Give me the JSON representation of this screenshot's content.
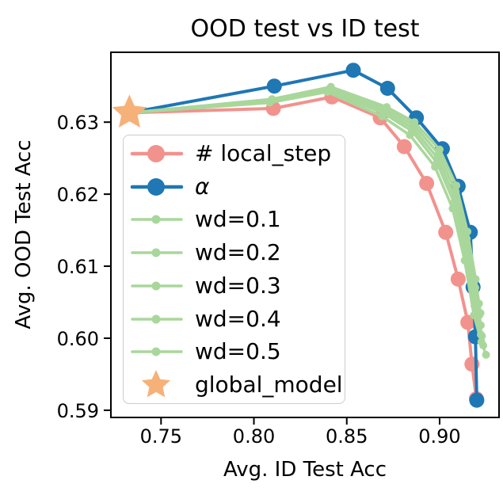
{
  "figure": {
    "title": "OOD test vs ID test",
    "xlabel": "Avg. ID Test Acc",
    "ylabel": "Avg. OOD Test Acc"
  },
  "colors": {
    "blue": "#1f77b4",
    "pink": "#f2928d",
    "green": "#a9d79b",
    "orange": "#f6b179",
    "axis": "#000000",
    "legend_border": "#cccccc"
  },
  "chart_data": {
    "type": "line",
    "title": "OOD test vs ID test",
    "xlabel": "Avg. ID Test Acc",
    "ylabel": "Avg. OOD Test Acc",
    "xlim": [
      0.723,
      0.932
    ],
    "ylim": [
      0.589,
      0.6397
    ],
    "grid": false,
    "legend_position": "center-left-inside",
    "xticks": [
      {
        "value": 0.75,
        "label": "0.75"
      },
      {
        "value": 0.8,
        "label": "0.80"
      },
      {
        "value": 0.85,
        "label": "0.85"
      },
      {
        "value": 0.9,
        "label": "0.90"
      }
    ],
    "yticks": [
      {
        "value": 0.63,
        "label": "0.63"
      },
      {
        "value": 0.62,
        "label": "0.62"
      },
      {
        "value": 0.61,
        "label": "0.61"
      },
      {
        "value": 0.6,
        "label": "0.60"
      },
      {
        "value": 0.59,
        "label": "0.59"
      }
    ],
    "global_model": {
      "label": "global_model",
      "marker": "star",
      "color_key": "orange",
      "point": [
        0.733,
        0.6313
      ]
    },
    "series": [
      {
        "id": "local-step",
        "name": "# local_step",
        "color_key": "pink",
        "size": "large",
        "connect_to_global": true,
        "points": [
          [
            0.8105,
            0.6319
          ],
          [
            0.842,
            0.6335
          ],
          [
            0.868,
            0.6306
          ],
          [
            0.881,
            0.6266
          ],
          [
            0.893,
            0.6215
          ],
          [
            0.9033,
            0.6147
          ],
          [
            0.91,
            0.6082
          ],
          [
            0.9152,
            0.6022
          ],
          [
            0.9174,
            0.5964
          ],
          [
            0.9198,
            0.5916
          ]
        ]
      },
      {
        "id": "alpha",
        "name": "α",
        "italic": true,
        "color_key": "blue",
        "size": "large",
        "connect_to_global": true,
        "points": [
          [
            0.811,
            0.635
          ],
          [
            0.8535,
            0.6372
          ],
          [
            0.872,
            0.6347
          ],
          [
            0.8875,
            0.6306
          ],
          [
            0.9015,
            0.6263
          ],
          [
            0.91,
            0.6211
          ],
          [
            0.9165,
            0.6147
          ],
          [
            0.918,
            0.6071
          ],
          [
            0.9193,
            0.6002
          ],
          [
            0.92,
            0.5914
          ]
        ]
      },
      {
        "id": "wd-0-1",
        "name": "wd=0.1",
        "color_key": "green",
        "size": "small",
        "connect_to_global": true,
        "points": [
          [
            0.8085,
            0.6327
          ],
          [
            0.8395,
            0.6342
          ],
          [
            0.869,
            0.6308
          ],
          [
            0.884,
            0.6282
          ],
          [
            0.8975,
            0.6238
          ],
          [
            0.907,
            0.618
          ],
          [
            0.9135,
            0.6108
          ],
          [
            0.9185,
            0.6032
          ],
          [
            0.9225,
            0.5995
          ],
          [
            0.925,
            0.5977
          ]
        ]
      },
      {
        "id": "wd-0-2",
        "name": "wd=0.2",
        "color_key": "green",
        "size": "small",
        "connect_to_global": true,
        "points": [
          [
            0.809,
            0.6329
          ],
          [
            0.84,
            0.6344
          ],
          [
            0.87,
            0.6312
          ],
          [
            0.885,
            0.6288
          ],
          [
            0.8985,
            0.6244
          ],
          [
            0.9078,
            0.6188
          ],
          [
            0.914,
            0.6118
          ],
          [
            0.9188,
            0.6045
          ],
          [
            0.9222,
            0.6005
          ],
          [
            0.9235,
            0.599
          ]
        ]
      },
      {
        "id": "wd-0-3",
        "name": "wd=0.3",
        "color_key": "green",
        "size": "small",
        "connect_to_global": true,
        "points": [
          [
            0.8093,
            0.633
          ],
          [
            0.8405,
            0.6346
          ],
          [
            0.8705,
            0.6315
          ],
          [
            0.8855,
            0.6292
          ],
          [
            0.899,
            0.625
          ],
          [
            0.9082,
            0.6196
          ],
          [
            0.9143,
            0.6128
          ],
          [
            0.919,
            0.6058
          ],
          [
            0.9218,
            0.6018
          ],
          [
            0.9228,
            0.6003
          ]
        ]
      },
      {
        "id": "wd-0-4",
        "name": "wd=0.4",
        "color_key": "green",
        "size": "small",
        "connect_to_global": true,
        "points": [
          [
            0.8095,
            0.6331
          ],
          [
            0.841,
            0.6347
          ],
          [
            0.871,
            0.6318
          ],
          [
            0.886,
            0.6296
          ],
          [
            0.8995,
            0.6256
          ],
          [
            0.9086,
            0.6204
          ],
          [
            0.9146,
            0.6138
          ],
          [
            0.9192,
            0.607
          ],
          [
            0.9214,
            0.6032
          ],
          [
            0.9222,
            0.6018
          ]
        ]
      },
      {
        "id": "wd-0-5",
        "name": "wd=0.5",
        "color_key": "green",
        "size": "small",
        "connect_to_global": true,
        "points": [
          [
            0.8098,
            0.6332
          ],
          [
            0.8415,
            0.6349
          ],
          [
            0.8715,
            0.6321
          ],
          [
            0.8865,
            0.63
          ],
          [
            0.9,
            0.6262
          ],
          [
            0.909,
            0.6212
          ],
          [
            0.915,
            0.6148
          ],
          [
            0.9194,
            0.6082
          ],
          [
            0.9212,
            0.6048
          ],
          [
            0.922,
            0.6035
          ]
        ]
      }
    ]
  },
  "legend": {
    "items": [
      {
        "id": "local-step",
        "label": "# local_step",
        "marker": "circle-line-large",
        "color_key": "pink"
      },
      {
        "id": "alpha",
        "label": "α",
        "marker": "circle-line-large",
        "color_key": "blue",
        "italic": true
      },
      {
        "id": "wd-0-1",
        "label": "wd=0.1",
        "marker": "circle-line-small",
        "color_key": "green"
      },
      {
        "id": "wd-0-2",
        "label": "wd=0.2",
        "marker": "circle-line-small",
        "color_key": "green"
      },
      {
        "id": "wd-0-3",
        "label": "wd=0.3",
        "marker": "circle-line-small",
        "color_key": "green"
      },
      {
        "id": "wd-0-4",
        "label": "wd=0.4",
        "marker": "circle-line-small",
        "color_key": "green"
      },
      {
        "id": "wd-0-5",
        "label": "wd=0.5",
        "marker": "circle-line-small",
        "color_key": "green"
      },
      {
        "id": "global-model",
        "label": "global_model",
        "marker": "star",
        "color_key": "orange"
      }
    ]
  }
}
